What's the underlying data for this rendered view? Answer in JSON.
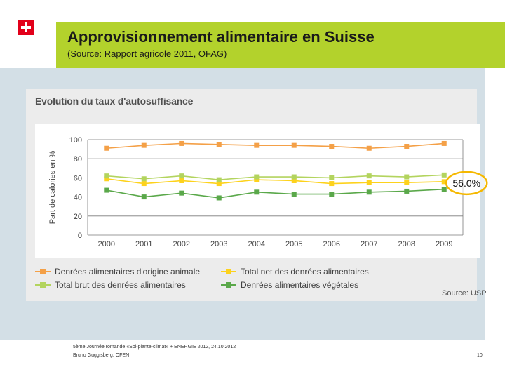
{
  "slide": {
    "title": "Approvisionnement alimentaire en Suisse",
    "subtitle": "(Source: Rapport agricole 2011, OFAG)",
    "panel_title": "Evolution du taux d'autosuffisance",
    "source_label": "Source: USP",
    "highlight_label": "56.0%",
    "footer_line1": "5ème Journée romande «Sol-plante-climat» + ENERGIE 2012, 24.10.2012",
    "footer_line2": "Bruno Guggisberg, OFEN",
    "page_number": "10",
    "flag_icon": "swiss-cross-icon"
  },
  "colors": {
    "title_band": "#b3d22c",
    "background_band": "#d3dfe6",
    "panel": "#ececec",
    "highlight_ring": "#f5b800"
  },
  "chart_data": {
    "type": "line",
    "title": "Evolution du taux d'autosuffisance",
    "xlabel": "",
    "ylabel": "Part de calories en %",
    "ylim": [
      0,
      100
    ],
    "yticks": [
      0,
      20,
      40,
      60,
      80,
      100
    ],
    "categories": [
      "2000",
      "2001",
      "2002",
      "2003",
      "2004",
      "2005",
      "2006",
      "2007",
      "2008",
      "2009"
    ],
    "grid": "horizontal",
    "legend_position": "bottom",
    "series": [
      {
        "name": "Denrées alimentaires d'origine animale",
        "color": "#f4a047",
        "marker": "square",
        "values": [
          91,
          94,
          96,
          95,
          94,
          94,
          93,
          91,
          93,
          96
        ]
      },
      {
        "name": "Total net des denrées alimentaires",
        "color": "#fdd21c",
        "marker": "square",
        "values": [
          59,
          54,
          57,
          54,
          58,
          57,
          54,
          55,
          55,
          56
        ]
      },
      {
        "name": "Total brut des denrées alimentaires",
        "color": "#b3d45e",
        "marker": "square",
        "values": [
          62,
          59,
          62,
          58,
          61,
          61,
          60,
          62,
          61,
          63
        ]
      },
      {
        "name": "Denrées alimentaires végétales",
        "color": "#5aa84a",
        "marker": "square",
        "values": [
          47,
          40,
          44,
          39,
          45,
          43,
          43,
          45,
          46,
          48
        ]
      }
    ],
    "annotation": {
      "text": "56.0%",
      "category": "2009",
      "value": 56
    }
  }
}
